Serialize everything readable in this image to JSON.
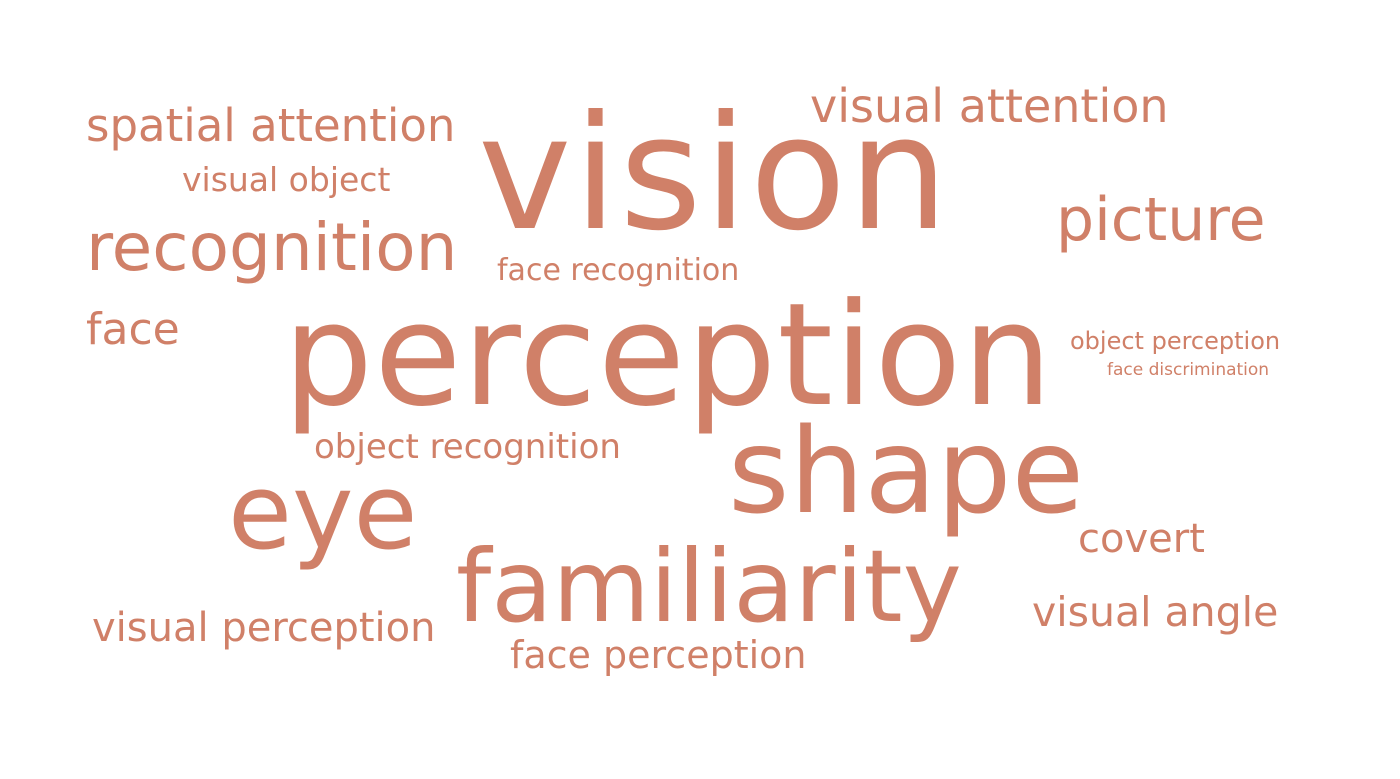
{
  "colors": {
    "background": "#ffffff",
    "word_color": "#d08068"
  },
  "words": {
    "vision": "vision",
    "perception": "perception",
    "shape": "shape",
    "eye": "eye",
    "familiarity": "familiarity",
    "recognition": "recognition",
    "picture": "picture",
    "visual_attention": "visual attention",
    "spatial_attention": "spatial attention",
    "visual_perception": "visual perception",
    "visual_angle": "visual angle",
    "face_perception": "face perception",
    "face": "face",
    "covert": "covert",
    "object_recognition": "object recognition",
    "visual_object": "visual object",
    "face_recognition": "face recognition",
    "object_perception": "object perception",
    "face_discrimination": "face discrimination"
  }
}
